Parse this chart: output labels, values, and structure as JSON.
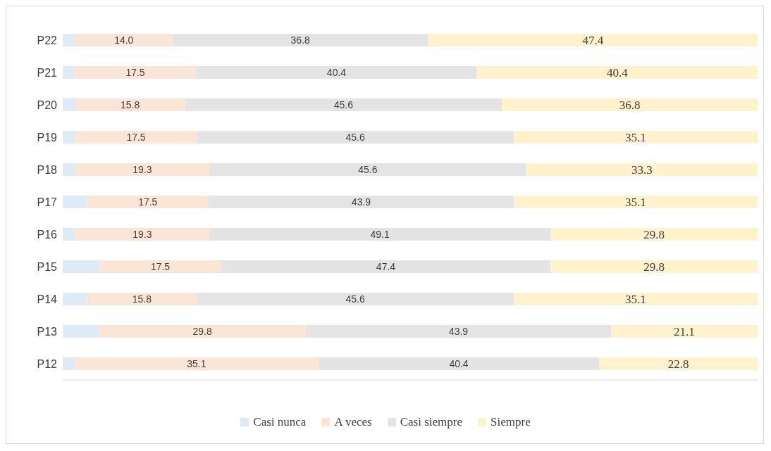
{
  "chart_data": {
    "type": "bar",
    "orientation": "horizontal",
    "stacked": true,
    "categories": [
      "P22",
      "P21",
      "P20",
      "P19",
      "P18",
      "P17",
      "P16",
      "P15",
      "P14",
      "P13",
      "P12"
    ],
    "series": [
      {
        "name": "Casi nunca",
        "color": "#deebf7",
        "values": [
          1.8,
          1.7,
          1.8,
          1.8,
          1.8,
          3.5,
          1.8,
          5.3,
          3.5,
          5.2,
          1.7
        ]
      },
      {
        "name": "A veces",
        "color": "#fbe5d6",
        "values": [
          14.0,
          17.5,
          15.8,
          17.5,
          19.3,
          17.5,
          19.3,
          17.5,
          15.8,
          29.8,
          35.1
        ],
        "value_labels": [
          "14.0",
          "17.5",
          "15.8",
          "17.5",
          "19.3",
          "17.5",
          "19.3",
          "17.5",
          "15.8",
          "29.8",
          "35.1"
        ]
      },
      {
        "name": "Casi siempre",
        "color": "#e4e4e4",
        "values": [
          36.8,
          40.4,
          45.6,
          45.6,
          45.6,
          43.9,
          49.1,
          47.4,
          45.6,
          43.9,
          40.4
        ],
        "value_labels": [
          "36.8",
          "40.4",
          "45.6",
          "45.6",
          "45.6",
          "43.9",
          "49.1",
          "47.4",
          "45.6",
          "43.9",
          "40.4"
        ]
      },
      {
        "name": "Siempre",
        "color": "#fff2cc",
        "values": [
          47.4,
          40.4,
          36.8,
          35.1,
          33.3,
          35.1,
          29.8,
          29.8,
          35.1,
          21.1,
          22.8
        ],
        "value_labels": [
          "47.4",
          "40.4",
          "36.8",
          "35.1",
          "33.3",
          "35.1",
          "29.8",
          "29.8",
          "35.1",
          "21.1",
          "22.8"
        ]
      }
    ],
    "xlim": [
      0,
      100
    ],
    "tick_labels": "y",
    "legend": "bottom"
  }
}
